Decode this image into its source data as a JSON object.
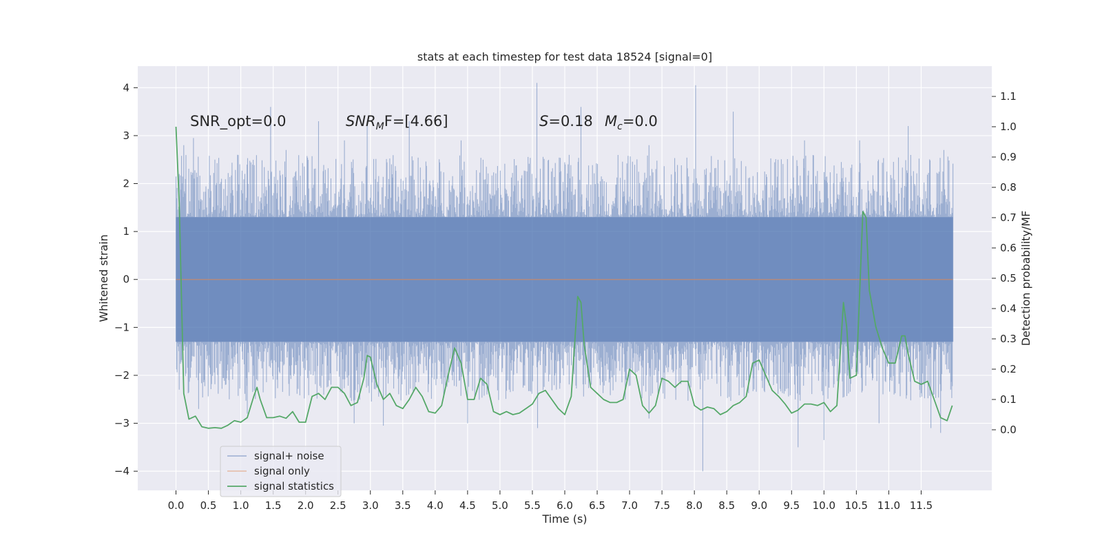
{
  "chart_data": {
    "type": "line",
    "title": "stats at each timestep for test data 18524 [signal=0]",
    "xlabel": "Time (s)",
    "ylabel_left": "Whitened strain",
    "ylabel_right": "Detection probability/MF",
    "xlim": [
      -0.59,
      12.59
    ],
    "ylim_left": [
      -4.4,
      4.45
    ],
    "ylim_right": [
      -0.2,
      1.2
    ],
    "x_ticks": [
      0.0,
      0.5,
      1.0,
      1.5,
      2.0,
      2.5,
      3.0,
      3.5,
      4.0,
      4.5,
      5.0,
      5.5,
      6.0,
      6.5,
      7.0,
      7.5,
      8.0,
      8.5,
      9.0,
      9.5,
      10.0,
      10.5,
      11.0,
      11.5
    ],
    "x_tick_labels": [
      "0.0",
      "0.5",
      "1.0",
      "1.5",
      "2.0",
      "2.5",
      "3.0",
      "3.5",
      "4.0",
      "4.5",
      "5.0",
      "5.5",
      "6.0",
      "6.5",
      "7.0",
      "7.5",
      "8.0",
      "8.5",
      "9.0",
      "9.5",
      "10.0",
      "10.5",
      "11.0",
      "11.5"
    ],
    "y_left_ticks": [
      4,
      3,
      2,
      1,
      0,
      -1,
      -2,
      -3,
      -4
    ],
    "y_left_tick_labels": [
      "4",
      "3",
      "2",
      "1",
      "0",
      "−1",
      "−2",
      "−3",
      "−4"
    ],
    "y_right_ticks": [
      1.1,
      1.0,
      0.9,
      0.8,
      0.7,
      0.6,
      0.5,
      0.4,
      0.3,
      0.2,
      0.1,
      0.0
    ],
    "y_right_tick_labels": [
      "1.1",
      "1.0",
      "0.9",
      "0.8",
      "0.7",
      "0.6",
      "0.5",
      "0.4",
      "0.3",
      "0.2",
      "0.1",
      "0.0"
    ],
    "grid": true,
    "legend_placement": "lower-left",
    "annotations": [
      {
        "id": "snr-opt",
        "text": "SNR_opt=0.0"
      },
      {
        "id": "snr-mf",
        "text": "SNR",
        "sub": "M",
        "text2": "F=[4.66]"
      },
      {
        "id": "s-stat",
        "text": "S",
        "text2": "=0.18"
      },
      {
        "id": "mc",
        "text": "M",
        "sub": "c",
        "text2": "=0.0"
      }
    ],
    "series": [
      {
        "name": "signal+ noise",
        "axis": "left",
        "color": "#4c72b0",
        "style": "dense-noise",
        "x_range": [
          0.0,
          11.99
        ],
        "envelope": [
          -1.3,
          1.3
        ],
        "peaks": [
          {
            "x": 0.05,
            "y": 2.2
          },
          {
            "x": 0.12,
            "y": 2.8
          },
          {
            "x": 0.27,
            "y": 2.95
          },
          {
            "x": 0.6,
            "y": 2.5
          },
          {
            "x": 0.95,
            "y": 2.6
          },
          {
            "x": 1.46,
            "y": 3.6
          },
          {
            "x": 1.7,
            "y": 2.7
          },
          {
            "x": 2.2,
            "y": 3.3
          },
          {
            "x": 2.6,
            "y": 2.9
          },
          {
            "x": 2.95,
            "y": 3.3
          },
          {
            "x": 3.6,
            "y": 3.3
          },
          {
            "x": 4.4,
            "y": 2.9
          },
          {
            "x": 5.57,
            "y": 4.1
          },
          {
            "x": 6.25,
            "y": 3.6
          },
          {
            "x": 7.3,
            "y": 2.8
          },
          {
            "x": 8.02,
            "y": 4.05
          },
          {
            "x": 8.6,
            "y": 3.5
          },
          {
            "x": 9.7,
            "y": 2.9
          },
          {
            "x": 10.55,
            "y": 2.9
          },
          {
            "x": 11.3,
            "y": 3.2
          },
          {
            "x": 11.85,
            "y": 2.7
          }
        ],
        "troughs": [
          {
            "x": 0.05,
            "y": -2.3
          },
          {
            "x": 0.35,
            "y": -2.7
          },
          {
            "x": 1.1,
            "y": -2.8
          },
          {
            "x": 2.75,
            "y": -3.0
          },
          {
            "x": 3.2,
            "y": -3.05
          },
          {
            "x": 4.5,
            "y": -3.0
          },
          {
            "x": 5.58,
            "y": -3.1
          },
          {
            "x": 7.3,
            "y": -2.9
          },
          {
            "x": 8.13,
            "y": -4.0
          },
          {
            "x": 9.6,
            "y": -3.5
          },
          {
            "x": 10.0,
            "y": -3.35
          },
          {
            "x": 10.85,
            "y": -3.0
          },
          {
            "x": 11.65,
            "y": -3.1
          },
          {
            "x": 11.8,
            "y": -3.2
          }
        ]
      },
      {
        "name": "signal only",
        "axis": "left",
        "color": "#dd8452",
        "x": [
          0.0,
          11.99
        ],
        "y": [
          0.0,
          0.0
        ]
      },
      {
        "name": "signal statistics",
        "axis": "right",
        "color": "#55a868",
        "x": [
          0.0,
          0.05,
          0.12,
          0.2,
          0.3,
          0.4,
          0.5,
          0.6,
          0.7,
          0.8,
          0.9,
          1.0,
          1.1,
          1.2,
          1.25,
          1.3,
          1.4,
          1.5,
          1.6,
          1.7,
          1.8,
          1.9,
          2.0,
          2.1,
          2.2,
          2.3,
          2.4,
          2.5,
          2.6,
          2.7,
          2.8,
          2.9,
          2.95,
          3.0,
          3.1,
          3.2,
          3.3,
          3.4,
          3.5,
          3.6,
          3.7,
          3.8,
          3.9,
          4.0,
          4.1,
          4.2,
          4.3,
          4.4,
          4.5,
          4.6,
          4.7,
          4.8,
          4.9,
          5.0,
          5.1,
          5.2,
          5.3,
          5.4,
          5.5,
          5.6,
          5.7,
          5.8,
          5.9,
          6.0,
          6.1,
          6.2,
          6.25,
          6.3,
          6.4,
          6.5,
          6.6,
          6.7,
          6.8,
          6.9,
          7.0,
          7.1,
          7.2,
          7.3,
          7.4,
          7.5,
          7.6,
          7.7,
          7.8,
          7.9,
          8.0,
          8.1,
          8.2,
          8.3,
          8.4,
          8.5,
          8.6,
          8.7,
          8.8,
          8.9,
          9.0,
          9.1,
          9.2,
          9.3,
          9.4,
          9.5,
          9.6,
          9.7,
          9.8,
          9.9,
          10.0,
          10.1,
          10.2,
          10.3,
          10.35,
          10.4,
          10.5,
          10.6,
          10.65,
          10.7,
          10.8,
          10.9,
          11.0,
          11.1,
          11.2,
          11.25,
          11.3,
          11.4,
          11.5,
          11.6,
          11.7,
          11.8,
          11.9,
          11.98
        ],
        "y": [
          1.0,
          0.75,
          0.12,
          0.035,
          0.045,
          0.01,
          0.005,
          0.007,
          0.005,
          0.015,
          0.03,
          0.025,
          0.04,
          0.11,
          0.14,
          0.1,
          0.04,
          0.04,
          0.045,
          0.038,
          0.06,
          0.025,
          0.025,
          0.11,
          0.12,
          0.1,
          0.14,
          0.14,
          0.12,
          0.08,
          0.09,
          0.17,
          0.245,
          0.24,
          0.15,
          0.1,
          0.12,
          0.08,
          0.07,
          0.1,
          0.14,
          0.11,
          0.06,
          0.055,
          0.08,
          0.18,
          0.27,
          0.22,
          0.1,
          0.1,
          0.17,
          0.15,
          0.06,
          0.05,
          0.06,
          0.05,
          0.055,
          0.07,
          0.085,
          0.12,
          0.13,
          0.1,
          0.07,
          0.05,
          0.11,
          0.44,
          0.42,
          0.28,
          0.14,
          0.12,
          0.1,
          0.09,
          0.09,
          0.1,
          0.2,
          0.18,
          0.08,
          0.055,
          0.08,
          0.17,
          0.16,
          0.14,
          0.16,
          0.16,
          0.08,
          0.065,
          0.075,
          0.07,
          0.05,
          0.06,
          0.08,
          0.09,
          0.11,
          0.22,
          0.23,
          0.18,
          0.13,
          0.11,
          0.085,
          0.055,
          0.065,
          0.085,
          0.085,
          0.08,
          0.09,
          0.06,
          0.08,
          0.42,
          0.34,
          0.17,
          0.18,
          0.72,
          0.7,
          0.46,
          0.34,
          0.27,
          0.22,
          0.22,
          0.31,
          0.31,
          0.25,
          0.16,
          0.15,
          0.16,
          0.1,
          0.04,
          0.03,
          0.08
        ]
      }
    ]
  }
}
